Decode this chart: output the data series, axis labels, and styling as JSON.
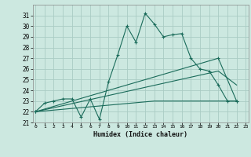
{
  "xlabel": "Humidex (Indice chaleur)",
  "bg_color": "#cce8e0",
  "grid_color": "#aaccc4",
  "line_color": "#1a6b5a",
  "xlim": [
    0,
    23
  ],
  "ylim": [
    21,
    32
  ],
  "yticks": [
    21,
    22,
    23,
    24,
    25,
    26,
    27,
    28,
    29,
    30,
    31
  ],
  "xticks": [
    0,
    1,
    2,
    3,
    4,
    5,
    6,
    7,
    8,
    9,
    10,
    11,
    12,
    13,
    14,
    15,
    16,
    17,
    18,
    19,
    20,
    21,
    22,
    23
  ],
  "series1": [
    [
      0,
      22
    ],
    [
      1,
      22.8
    ],
    [
      2,
      23
    ],
    [
      3,
      23.2
    ],
    [
      4,
      23.2
    ],
    [
      5,
      21.5
    ],
    [
      6,
      23.2
    ],
    [
      7,
      21.3
    ],
    [
      8,
      24.8
    ],
    [
      9,
      27.3
    ],
    [
      10,
      30
    ],
    [
      11,
      28.5
    ],
    [
      12,
      31.2
    ],
    [
      13,
      30.2
    ],
    [
      14,
      29
    ],
    [
      15,
      29.2
    ],
    [
      16,
      29.3
    ],
    [
      17,
      27
    ],
    [
      18,
      26
    ],
    [
      19,
      25.8
    ],
    [
      20,
      24.5
    ],
    [
      21,
      23
    ],
    [
      22,
      23
    ]
  ],
  "series2_flat": [
    [
      0,
      22
    ],
    [
      13,
      23
    ],
    [
      22,
      23
    ]
  ],
  "series3_mid": [
    [
      0,
      22
    ],
    [
      20,
      25.8
    ],
    [
      22,
      24.5
    ]
  ],
  "series4_upper": [
    [
      0,
      22
    ],
    [
      20,
      27
    ],
    [
      22,
      23
    ]
  ]
}
